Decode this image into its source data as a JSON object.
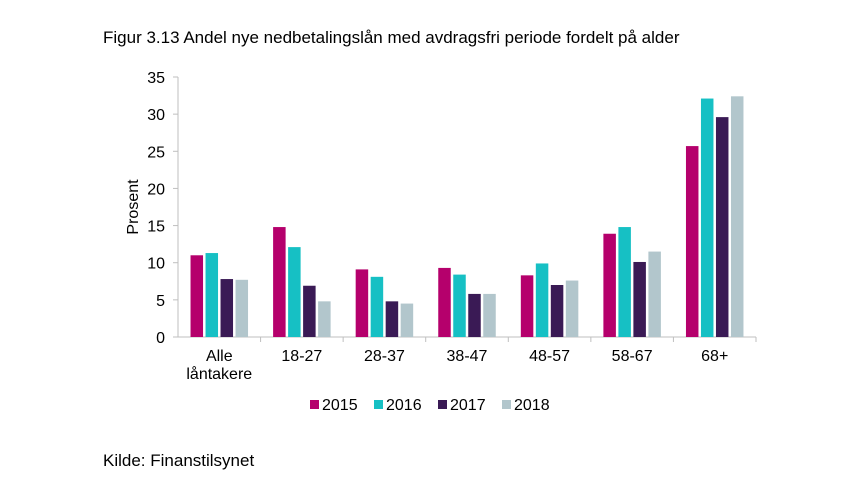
{
  "figure": {
    "title": "Figur 3.13 Andel nye nedbetalingslån med avdragsfri periode fordelt på alder",
    "source": "Kilde: Finanstilsynet"
  },
  "chart_data": {
    "type": "bar",
    "title": "Figur 3.13 Andel nye nedbetalingslån med avdragsfri periode fordelt på alder",
    "xlabel": "",
    "ylabel": "Prosent",
    "categories": [
      [
        "Alle",
        "låntakere"
      ],
      [
        "18-27"
      ],
      [
        "28-37"
      ],
      [
        "38-47"
      ],
      [
        "48-57"
      ],
      [
        "58-67"
      ],
      [
        "68+"
      ]
    ],
    "ylim": [
      0,
      35
    ],
    "yticks": [
      0,
      5,
      10,
      15,
      20,
      25,
      30,
      35
    ],
    "grid": false,
    "legend_position": "bottom",
    "series": [
      {
        "name": "2015",
        "color": "#b5006c",
        "values": [
          11.0,
          14.8,
          9.1,
          9.3,
          8.3,
          13.9,
          25.7
        ]
      },
      {
        "name": "2016",
        "color": "#16c0c4",
        "values": [
          11.3,
          12.1,
          8.1,
          8.4,
          9.9,
          14.8,
          32.1
        ]
      },
      {
        "name": "2017",
        "color": "#3a1a55",
        "values": [
          7.8,
          6.9,
          4.8,
          5.8,
          7.0,
          10.1,
          29.6
        ]
      },
      {
        "name": "2018",
        "color": "#b2c6cc",
        "values": [
          7.7,
          4.8,
          4.5,
          5.8,
          7.6,
          11.5,
          32.4
        ]
      }
    ]
  }
}
